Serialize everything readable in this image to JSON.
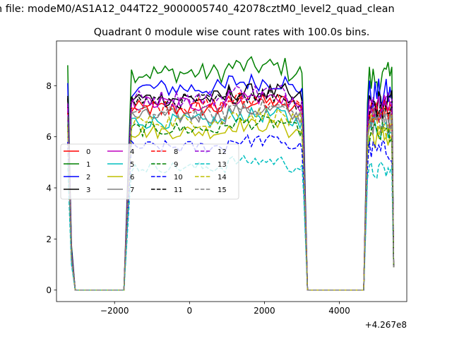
{
  "chart_data": {
    "type": "line",
    "suptitle": "n file: modeM0/AS1A12_044T22_9000005740_42078cztM0_level2_quad_clean",
    "title": "Quadrant 0 module wise count rates with 100.0s bins.",
    "xlabel": "",
    "ylabel": "",
    "x_offset_label": "+4.267e8",
    "xlim": [
      -3550,
      5800
    ],
    "ylim": [
      -0.45,
      9.75
    ],
    "x_ticks": [
      -2000,
      0,
      2000,
      4000
    ],
    "x_tick_labels": [
      "−2000",
      "0",
      "2000",
      "4000"
    ],
    "y_ticks": [
      0,
      2,
      4,
      6,
      8
    ],
    "y_tick_labels": [
      "0",
      "2",
      "4",
      "6",
      "8"
    ],
    "grid": false,
    "legend": {
      "position": "center-left",
      "columns": 4
    },
    "time_segments": [
      {
        "x_start": -3250,
        "x_end": -1550,
        "plateau_from": -1550
      },
      {
        "x_start": -1550,
        "x_end": 3050
      },
      {
        "x_start": 3050,
        "x_end": 4650,
        "zero": true
      },
      {
        "x_start": 4650,
        "x_end": 5450
      }
    ],
    "gap_ranges": [
      [
        -3050,
        -1750
      ],
      [
        3150,
        4650
      ]
    ],
    "series": [
      {
        "name": "0",
        "color": "#ff0000",
        "dash": "solid",
        "level": 7.1,
        "start": 7.3,
        "end_first": 7.0
      },
      {
        "name": "1",
        "color": "#008000",
        "dash": "solid",
        "level": 8.5,
        "start": 8.8,
        "end_first": 8.5
      },
      {
        "name": "2",
        "color": "#0000ff",
        "dash": "solid",
        "level": 7.9,
        "start": 8.1,
        "end_first": 7.9
      },
      {
        "name": "3",
        "color": "#000000",
        "dash": "solid",
        "level": 7.5,
        "start": 7.6,
        "end_first": 7.4
      },
      {
        "name": "4",
        "color": "#bf00bf",
        "dash": "solid",
        "level": 7.3,
        "start": 7.2,
        "end_first": 7.2
      },
      {
        "name": "5",
        "color": "#00bfbf",
        "dash": "solid",
        "level": 6.6,
        "start": 6.7,
        "end_first": 6.6
      },
      {
        "name": "6",
        "color": "#bfbf00",
        "dash": "solid",
        "level": 6.2,
        "start": 6.4,
        "end_first": 6.2
      },
      {
        "name": "7",
        "color": "#808080",
        "dash": "solid",
        "level": 6.8,
        "start": 6.8,
        "end_first": 6.8
      },
      {
        "name": "8",
        "color": "#ff0000",
        "dash": "dashed",
        "level": 7.2,
        "start": 7.0,
        "end_first": 7.1
      },
      {
        "name": "9",
        "color": "#008000",
        "dash": "dashed",
        "level": 6.3,
        "start": 6.5,
        "end_first": 6.3
      },
      {
        "name": "10",
        "color": "#0000ff",
        "dash": "dashed",
        "level": 5.6,
        "start": 5.8,
        "end_first": 5.5
      },
      {
        "name": "11",
        "color": "#000000",
        "dash": "dashed",
        "level": 7.4,
        "start": 7.5,
        "end_first": 7.3
      },
      {
        "name": "12",
        "color": "#9400d3",
        "dash": "dashed",
        "level": 7.5,
        "start": 7.3,
        "end_first": 7.4
      },
      {
        "name": "13",
        "color": "#00bfbf",
        "dash": "dashed",
        "level": 4.8,
        "start": 5.0,
        "end_first": 4.9
      },
      {
        "name": "14",
        "color": "#bfbf00",
        "dash": "dashed",
        "level": 6.6,
        "start": 6.4,
        "end_first": 6.5
      },
      {
        "name": "15",
        "color": "#808080",
        "dash": "dashed",
        "level": 6.9,
        "start": 6.8,
        "end_first": 6.8
      }
    ]
  }
}
